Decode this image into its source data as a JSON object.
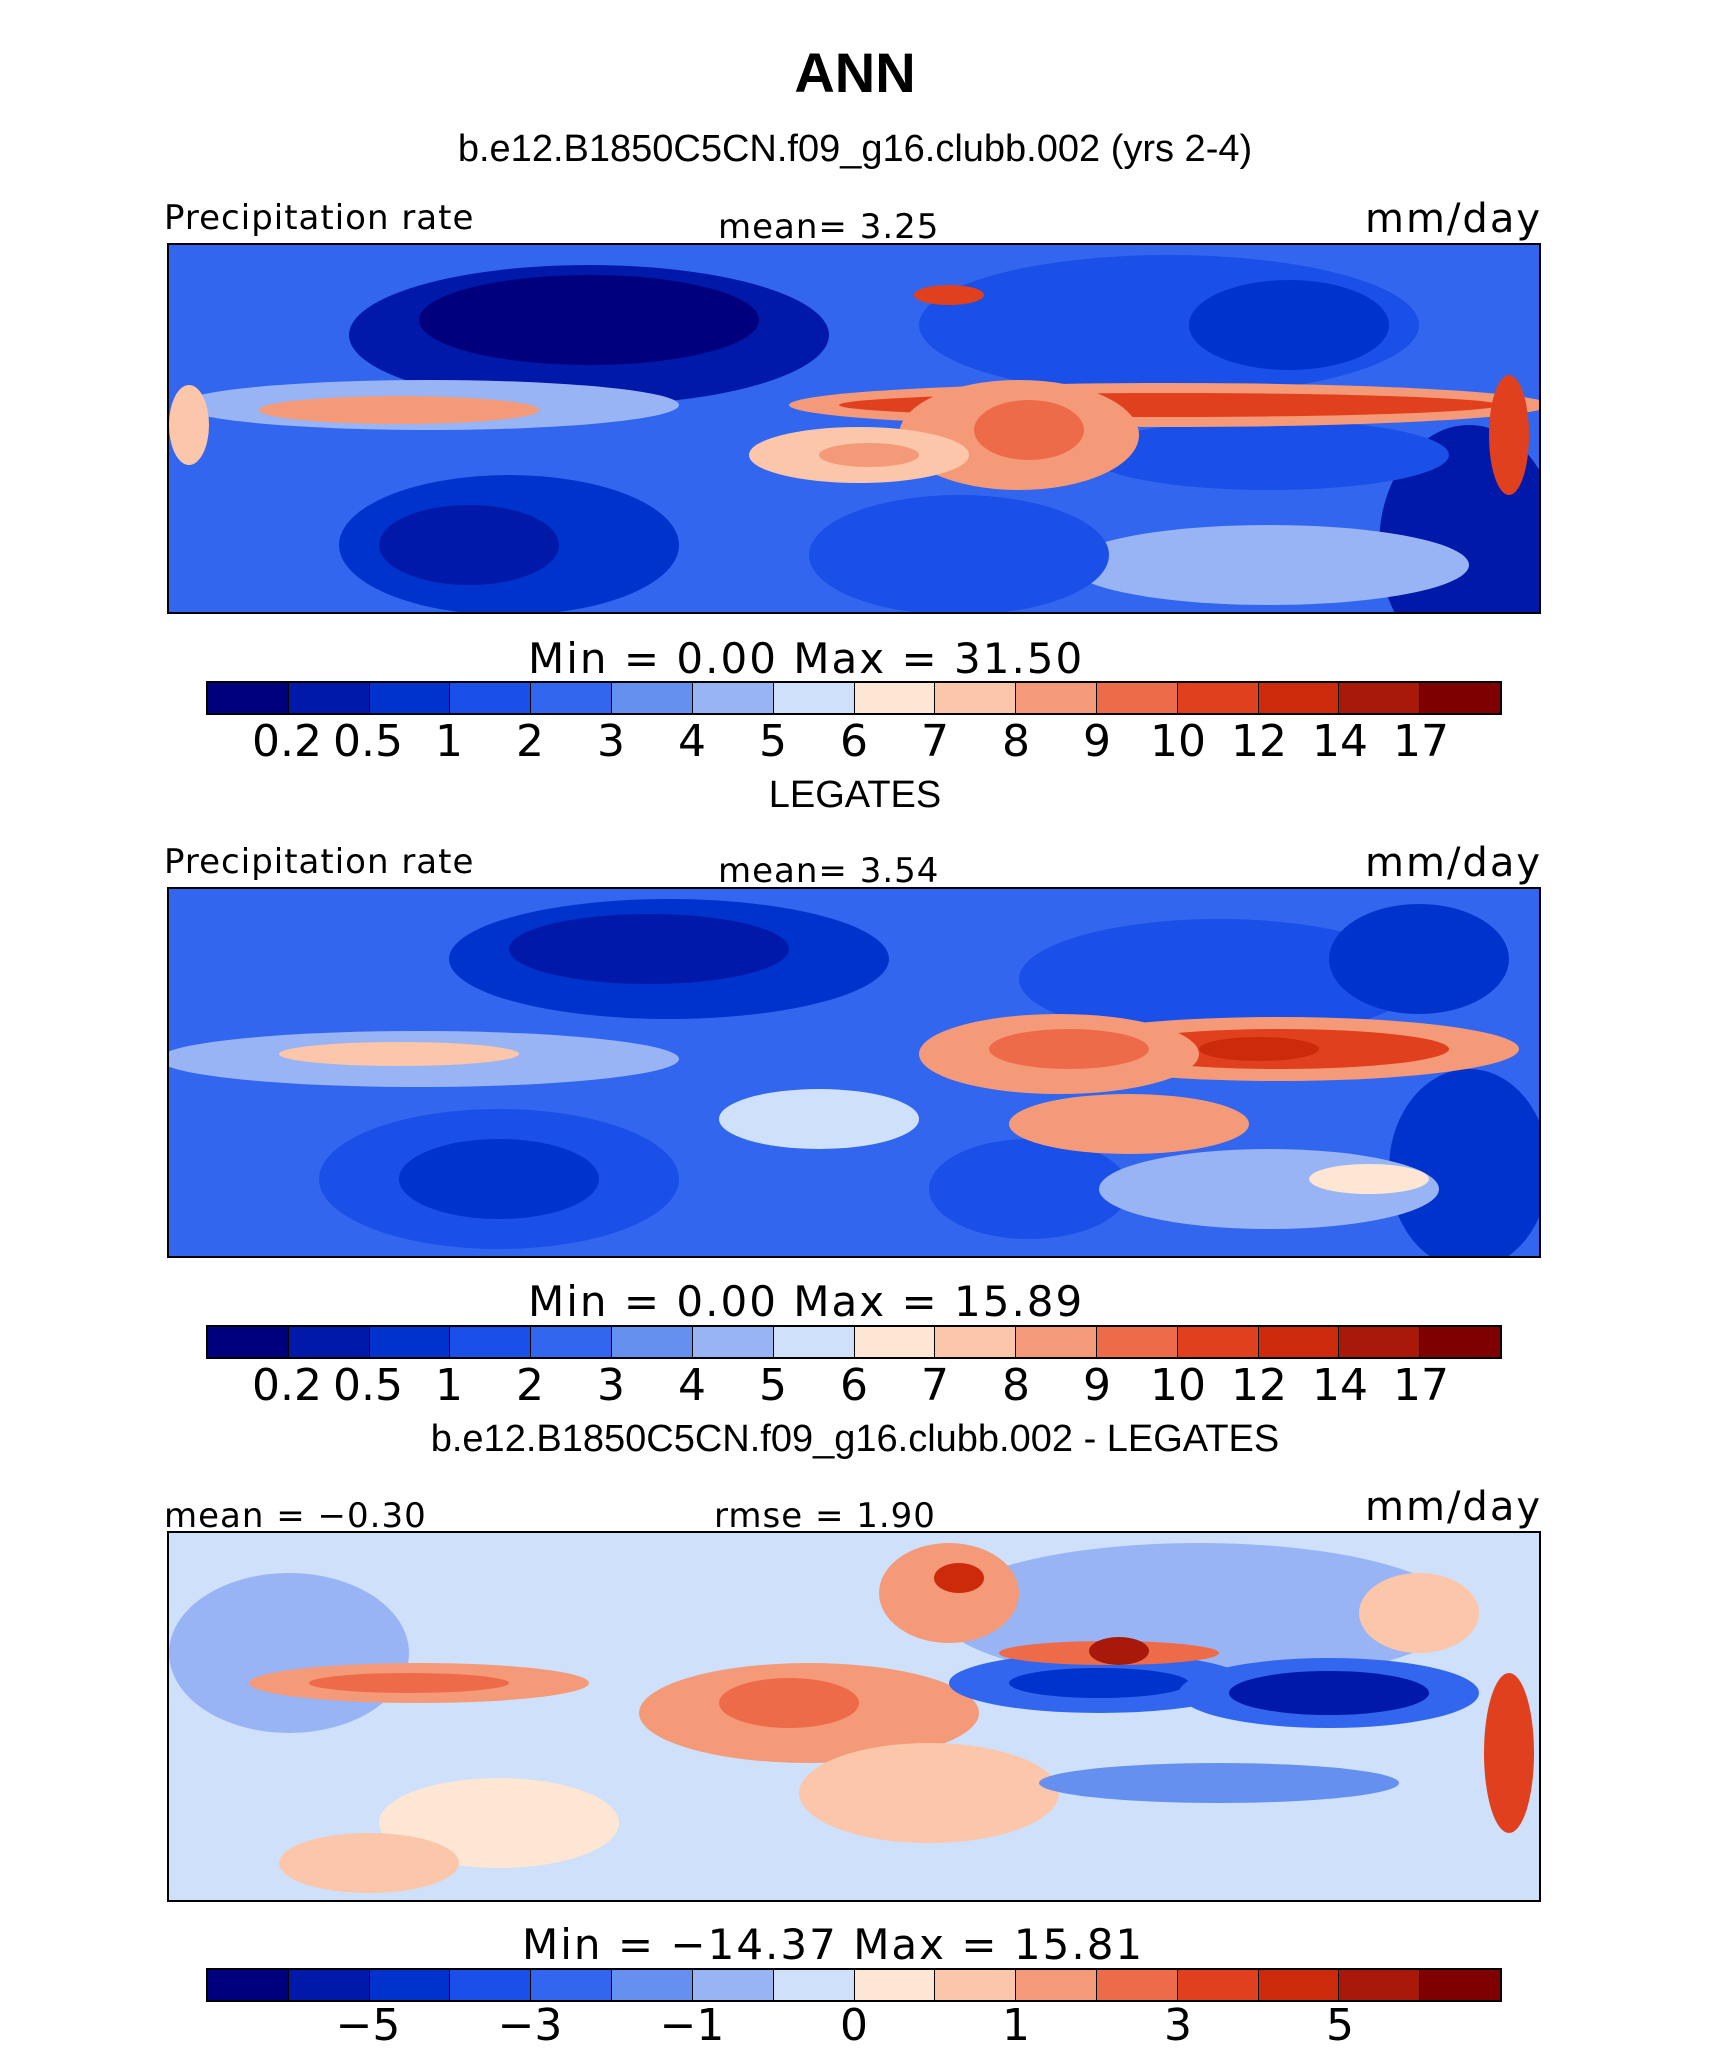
{
  "title": "ANN",
  "colors": [
    "#00007f",
    "#0019a8",
    "#0033cc",
    "#1a4fe8",
    "#3366ee",
    "#6690f0",
    "#99b4f4",
    "#cfe0fa",
    "#fde6d4",
    "#fbc6aa",
    "#f59a78",
    "#ee6b4a",
    "#e0401e",
    "#cc2a0a",
    "#a8190a",
    "#7f0000"
  ],
  "panels": [
    {
      "heading": "b.e12.B1850C5CN.f09_g16.clubb.002 (yrs 2-4)",
      "left_label": "Precipitation rate",
      "center_label": "mean=    3.25",
      "right_label": "mm/day",
      "minmax": "Min  =     0.00  Max  =    31.50",
      "tick_labels": [
        "0.2",
        "0.5",
        "1",
        "2",
        "3",
        "4",
        "5",
        "6",
        "7",
        "8",
        "9",
        "10",
        "12",
        "14",
        "17"
      ],
      "chart_data": {
        "type": "heatmap",
        "field": "Precipitation rate",
        "units": "mm/day",
        "mean": 3.25,
        "min": 0.0,
        "max": 31.5,
        "contour_levels": [
          0.2,
          0.5,
          1,
          2,
          3,
          4,
          5,
          6,
          7,
          8,
          9,
          10,
          12,
          14,
          17
        ]
      }
    },
    {
      "heading": "LEGATES",
      "left_label": "Precipitation rate",
      "center_label": "mean=    3.54",
      "right_label": "mm/day",
      "minmax": "Min  =     0.00  Max  =    15.89",
      "tick_labels": [
        "0.2",
        "0.5",
        "1",
        "2",
        "3",
        "4",
        "5",
        "6",
        "7",
        "8",
        "9",
        "10",
        "12",
        "14",
        "17"
      ],
      "chart_data": {
        "type": "heatmap",
        "field": "Precipitation rate",
        "units": "mm/day",
        "mean": 3.54,
        "min": 0.0,
        "max": 15.89,
        "contour_levels": [
          0.2,
          0.5,
          1,
          2,
          3,
          4,
          5,
          6,
          7,
          8,
          9,
          10,
          12,
          14,
          17
        ]
      }
    },
    {
      "heading": "b.e12.B1850C5CN.f09_g16.clubb.002 - LEGATES",
      "left_label": "mean  =   −0.30",
      "center_label": "rmse  =    1.90",
      "right_label": "mm/day",
      "minmax": "Min  =  −14.37  Max  =    15.81",
      "tick_labels": [
        "−5",
        "−3",
        "−1",
        "0",
        "1",
        "3",
        "5"
      ],
      "chart_data": {
        "type": "heatmap",
        "field": "difference",
        "units": "mm/day",
        "mean": -0.3,
        "rmse": 1.9,
        "min": -14.37,
        "max": 15.81,
        "contour_levels": [
          -5,
          -3,
          -1,
          0,
          1,
          3,
          5
        ]
      }
    }
  ]
}
